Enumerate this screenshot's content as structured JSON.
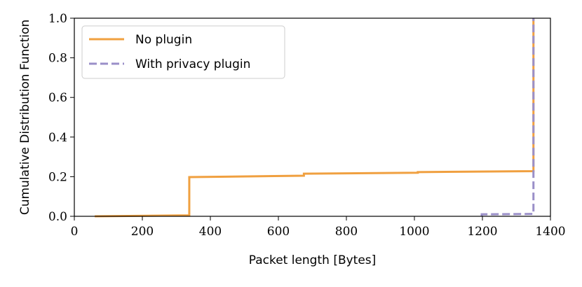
{
  "chart_data": {
    "type": "line",
    "xlabel": "Packet length [Bytes]",
    "ylabel": "Cumulative Distribution Function",
    "xlim": [
      0,
      1400
    ],
    "ylim": [
      0,
      1.0
    ],
    "x_ticks": [
      "0",
      "200",
      "400",
      "600",
      "800",
      "1000",
      "1200",
      "1400"
    ],
    "y_ticks": [
      "0.0",
      "0.2",
      "0.4",
      "0.6",
      "0.8",
      "1.0"
    ],
    "grid": false,
    "legend_position": "top-left",
    "series": [
      {
        "name": "No plugin",
        "color": "#f0a040",
        "style": "solid",
        "points": [
          [
            60,
            0.0
          ],
          [
            338,
            0.005
          ],
          [
            338,
            0.198
          ],
          [
            450,
            0.2
          ],
          [
            675,
            0.205
          ],
          [
            675,
            0.215
          ],
          [
            1010,
            0.22
          ],
          [
            1010,
            0.223
          ],
          [
            1350,
            0.228
          ],
          [
            1350,
            1.0
          ]
        ]
      },
      {
        "name": "With privacy plugin",
        "color": "#9a8fc8",
        "style": "dashed",
        "points": [
          [
            1198,
            0.0
          ],
          [
            1198,
            0.01
          ],
          [
            1350,
            0.012
          ],
          [
            1350,
            1.0
          ]
        ]
      }
    ]
  }
}
